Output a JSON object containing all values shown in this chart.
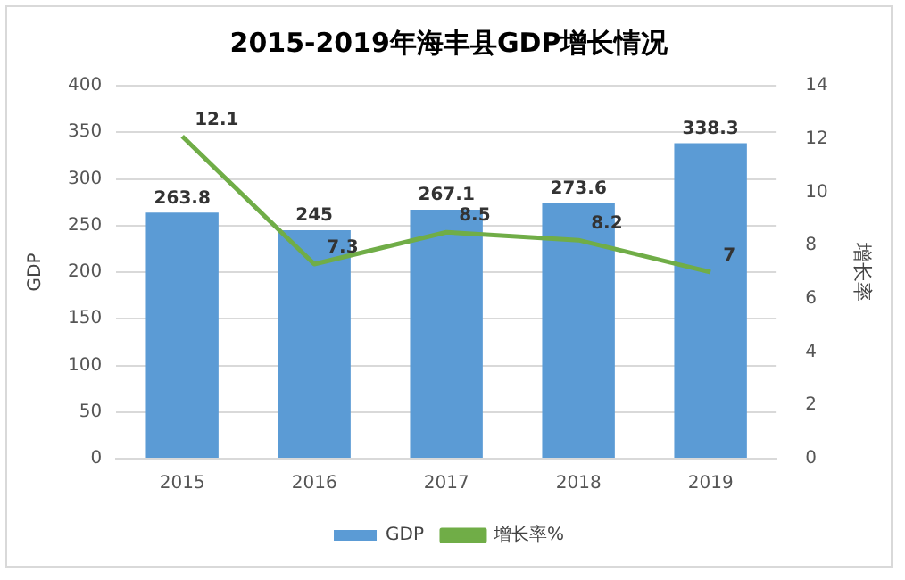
{
  "chart_data": {
    "type": "bar",
    "title": "2015-2019年海丰县GDP增长情况",
    "ylabel": "GDP",
    "y2label": "增长率",
    "categories": [
      "2015",
      "2016",
      "2017",
      "2018",
      "2019"
    ],
    "series": [
      {
        "name": "GDP",
        "color": "#5b9bd5",
        "values": [
          263.8,
          245,
          267.1,
          273.6,
          338.3
        ]
      },
      {
        "name": "增长率%",
        "type": "line",
        "axis": "y2",
        "color": "#70ad47",
        "values": [
          12.1,
          7.3,
          8.5,
          8.2,
          7
        ]
      }
    ],
    "ylim": [
      0,
      400
    ],
    "yticks": [
      0,
      50,
      100,
      150,
      200,
      250,
      300,
      350,
      400
    ],
    "y2lim": [
      0,
      14
    ],
    "y2ticks": [
      0,
      2,
      4,
      6,
      8,
      10,
      12,
      14
    ],
    "grid": "y",
    "legend": "bottom",
    "data_labels": true,
    "marker": "none"
  }
}
